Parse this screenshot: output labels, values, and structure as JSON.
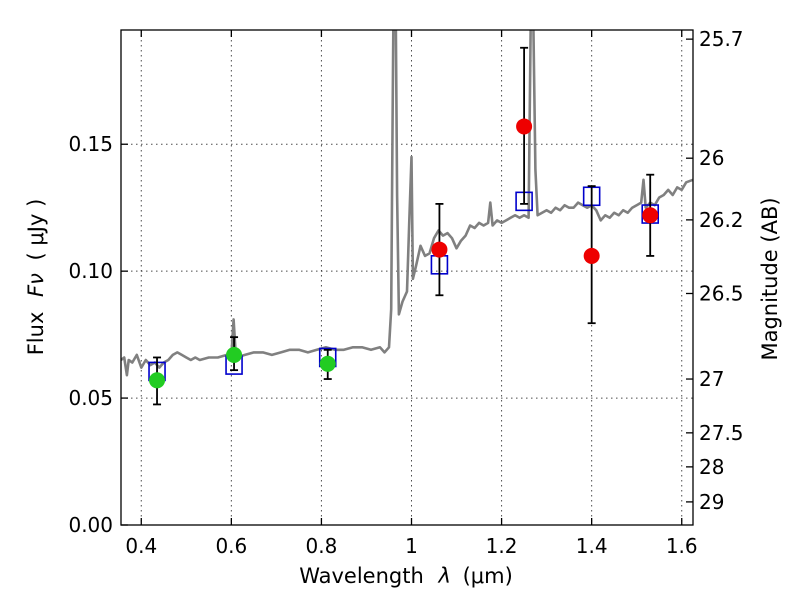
{
  "chart_data": {
    "type": "scatter",
    "title": "",
    "xlabel_main": "Wavelength",
    "xlabel_symbol": "λ",
    "xlabel_unit": "(μm)",
    "ylabel_main": "Flux",
    "ylabel_symbol": "Fν",
    "ylabel_unit": "( μJy )",
    "y2label": "Magnitude (AB)",
    "xlim": [
      0.355,
      1.625
    ],
    "ylim": [
      0.0,
      0.195
    ],
    "x_ticks": [
      0.4,
      0.6,
      0.8,
      1.0,
      1.2,
      1.4,
      1.6
    ],
    "x_tick_labels": [
      "0.4",
      "0.6",
      "0.8",
      "1",
      "1.2",
      "1.4",
      "1.6"
    ],
    "y_ticks": [
      0.0,
      0.05,
      0.1,
      0.15
    ],
    "y_tick_labels": [
      "0.00",
      "0.05",
      "0.10",
      "0.15"
    ],
    "y2_ticks": [
      {
        "label": "25.7",
        "flux": 0.1914
      },
      {
        "label": "26",
        "flux": 0.1445
      },
      {
        "label": "26.2",
        "flux": 0.1202
      },
      {
        "label": "26.5",
        "flux": 0.0912
      },
      {
        "label": "27",
        "flux": 0.0575
      },
      {
        "label": "27.5",
        "flux": 0.0363
      },
      {
        "label": "28",
        "flux": 0.0229
      },
      {
        "label": "29",
        "flux": 0.0091
      }
    ],
    "grid": true,
    "colors": {
      "spectrum": "#808080",
      "optical_points": "#22cc22",
      "nir_points": "#ee0000",
      "model_boxes": "#0000cc",
      "error_bars": "#000000"
    },
    "observed_optical": [
      {
        "x": 0.435,
        "y": 0.057,
        "err_low": 0.0475,
        "err_high": 0.066
      },
      {
        "x": 0.606,
        "y": 0.067,
        "err_low": 0.061,
        "err_high": 0.074
      },
      {
        "x": 0.814,
        "y": 0.0635,
        "err_low": 0.0575,
        "err_high": 0.069
      }
    ],
    "observed_nir": [
      {
        "x": 1.062,
        "y": 0.1085,
        "err_low": 0.0905,
        "err_high": 0.1265
      },
      {
        "x": 1.25,
        "y": 0.157,
        "err_low": 0.1265,
        "err_high": 0.188
      },
      {
        "x": 1.4,
        "y": 0.106,
        "err_low": 0.0795,
        "err_high": 0.1335
      },
      {
        "x": 1.53,
        "y": 0.122,
        "err_low": 0.106,
        "err_high": 0.138
      }
    ],
    "model_photometry": [
      {
        "x": 0.435,
        "y": 0.0605
      },
      {
        "x": 0.606,
        "y": 0.063
      },
      {
        "x": 0.814,
        "y": 0.066
      },
      {
        "x": 1.062,
        "y": 0.1025
      },
      {
        "x": 1.25,
        "y": 0.1275
      },
      {
        "x": 1.4,
        "y": 0.1295
      },
      {
        "x": 1.53,
        "y": 0.1225
      }
    ],
    "spectrum": [
      [
        0.355,
        0.065
      ],
      [
        0.362,
        0.066
      ],
      [
        0.368,
        0.059
      ],
      [
        0.372,
        0.065
      ],
      [
        0.38,
        0.064
      ],
      [
        0.39,
        0.067
      ],
      [
        0.4,
        0.062
      ],
      [
        0.41,
        0.065
      ],
      [
        0.42,
        0.063
      ],
      [
        0.43,
        0.064
      ],
      [
        0.44,
        0.062
      ],
      [
        0.45,
        0.064
      ],
      [
        0.46,
        0.065
      ],
      [
        0.47,
        0.067
      ],
      [
        0.48,
        0.068
      ],
      [
        0.49,
        0.067
      ],
      [
        0.5,
        0.066
      ],
      [
        0.51,
        0.065
      ],
      [
        0.52,
        0.066
      ],
      [
        0.53,
        0.065
      ],
      [
        0.55,
        0.066
      ],
      [
        0.57,
        0.066
      ],
      [
        0.59,
        0.067
      ],
      [
        0.6,
        0.066
      ],
      [
        0.605,
        0.081
      ],
      [
        0.61,
        0.066
      ],
      [
        0.63,
        0.067
      ],
      [
        0.65,
        0.068
      ],
      [
        0.67,
        0.068
      ],
      [
        0.69,
        0.067
      ],
      [
        0.71,
        0.068
      ],
      [
        0.73,
        0.069
      ],
      [
        0.75,
        0.069
      ],
      [
        0.77,
        0.068
      ],
      [
        0.79,
        0.069
      ],
      [
        0.81,
        0.07
      ],
      [
        0.83,
        0.069
      ],
      [
        0.85,
        0.069
      ],
      [
        0.87,
        0.07
      ],
      [
        0.89,
        0.07
      ],
      [
        0.91,
        0.069
      ],
      [
        0.93,
        0.07
      ],
      [
        0.94,
        0.068
      ],
      [
        0.95,
        0.07
      ],
      [
        0.955,
        0.085
      ],
      [
        0.958,
        0.16
      ],
      [
        0.96,
        0.205
      ],
      [
        0.965,
        0.205
      ],
      [
        0.968,
        0.13
      ],
      [
        0.972,
        0.083
      ],
      [
        0.98,
        0.088
      ],
      [
        0.99,
        0.092
      ],
      [
        0.995,
        0.12
      ],
      [
        1.0,
        0.145
      ],
      [
        1.003,
        0.097
      ],
      [
        1.01,
        0.102
      ],
      [
        1.02,
        0.11
      ],
      [
        1.03,
        0.106
      ],
      [
        1.04,
        0.107
      ],
      [
        1.05,
        0.113
      ],
      [
        1.06,
        0.116
      ],
      [
        1.07,
        0.114
      ],
      [
        1.08,
        0.115
      ],
      [
        1.09,
        0.113
      ],
      [
        1.1,
        0.109
      ],
      [
        1.11,
        0.112
      ],
      [
        1.12,
        0.114
      ],
      [
        1.13,
        0.118
      ],
      [
        1.14,
        0.117
      ],
      [
        1.15,
        0.119
      ],
      [
        1.16,
        0.118
      ],
      [
        1.17,
        0.119
      ],
      [
        1.175,
        0.127
      ],
      [
        1.18,
        0.118
      ],
      [
        1.19,
        0.12
      ],
      [
        1.2,
        0.119
      ],
      [
        1.21,
        0.12
      ],
      [
        1.22,
        0.121
      ],
      [
        1.23,
        0.122
      ],
      [
        1.24,
        0.121
      ],
      [
        1.25,
        0.122
      ],
      [
        1.26,
        0.121
      ],
      [
        1.265,
        0.205
      ],
      [
        1.27,
        0.205
      ],
      [
        1.275,
        0.14
      ],
      [
        1.28,
        0.122
      ],
      [
        1.29,
        0.123
      ],
      [
        1.3,
        0.124
      ],
      [
        1.31,
        0.123
      ],
      [
        1.32,
        0.125
      ],
      [
        1.33,
        0.124
      ],
      [
        1.34,
        0.126
      ],
      [
        1.35,
        0.125
      ],
      [
        1.36,
        0.125
      ],
      [
        1.37,
        0.127
      ],
      [
        1.38,
        0.126
      ],
      [
        1.39,
        0.125
      ],
      [
        1.4,
        0.126
      ],
      [
        1.41,
        0.124
      ],
      [
        1.42,
        0.12
      ],
      [
        1.43,
        0.122
      ],
      [
        1.44,
        0.121
      ],
      [
        1.45,
        0.123
      ],
      [
        1.46,
        0.122
      ],
      [
        1.47,
        0.124
      ],
      [
        1.48,
        0.123
      ],
      [
        1.49,
        0.125
      ],
      [
        1.5,
        0.126
      ],
      [
        1.51,
        0.127
      ],
      [
        1.515,
        0.136
      ],
      [
        1.52,
        0.125
      ],
      [
        1.53,
        0.127
      ],
      [
        1.54,
        0.126
      ],
      [
        1.55,
        0.129
      ],
      [
        1.56,
        0.13
      ],
      [
        1.57,
        0.132
      ],
      [
        1.58,
        0.13
      ],
      [
        1.59,
        0.133
      ],
      [
        1.6,
        0.132
      ],
      [
        1.61,
        0.135
      ],
      [
        1.625,
        0.136
      ]
    ]
  }
}
